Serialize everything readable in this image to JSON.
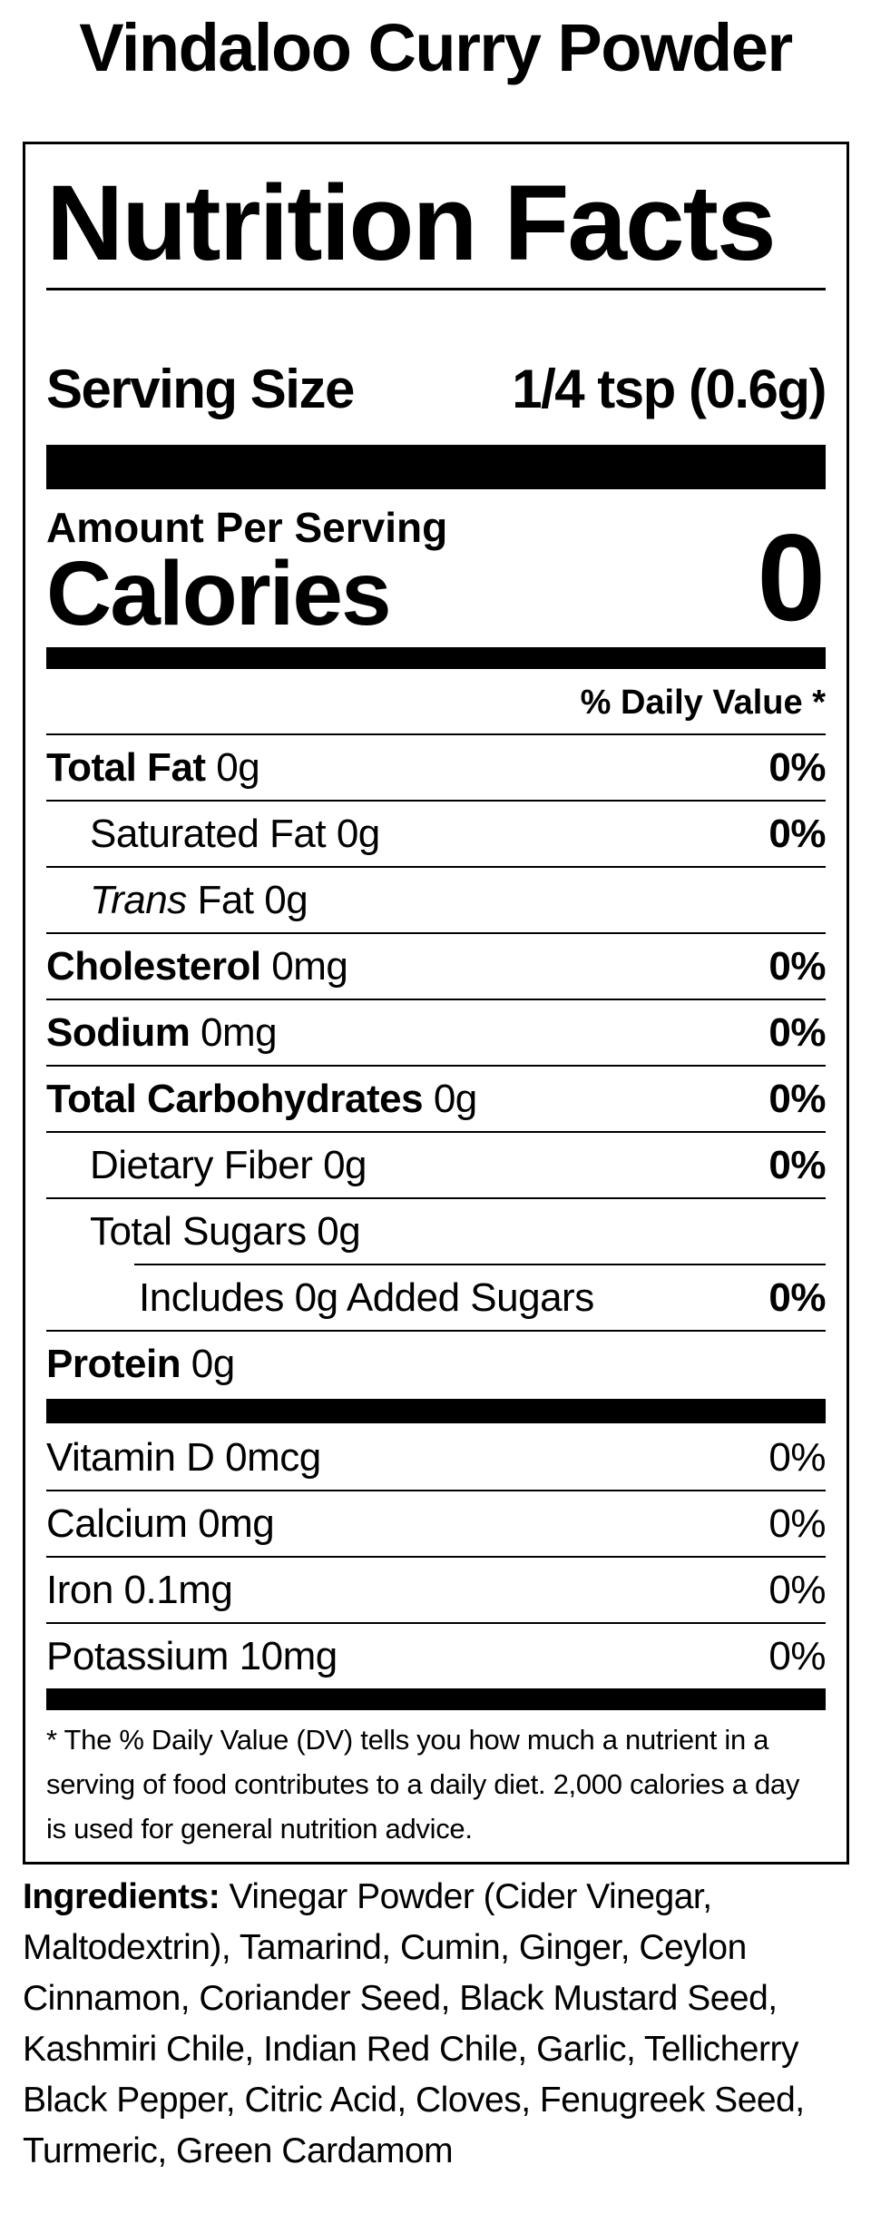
{
  "page": {
    "title": "Vindaloo Curry Powder"
  },
  "label": {
    "heading": "Nutrition Facts",
    "serving": {
      "label": "Serving Size",
      "value": "1/4 tsp (0.6g)"
    },
    "amount_per_serving": "Amount Per Serving",
    "calories": {
      "label": "Calories",
      "value": "0"
    },
    "daily_value_header": "% Daily Value *",
    "rows": [
      {
        "b": "Total Fat",
        "i": "",
        "r": " 0g",
        "dv": "0%"
      },
      {
        "b": "",
        "i": "",
        "r": "Saturated Fat 0g",
        "dv": "0%"
      },
      {
        "b": "",
        "i": "Trans",
        "r": " Fat 0g",
        "dv": ""
      },
      {
        "b": "Cholesterol",
        "i": "",
        "r": " 0mg",
        "dv": "0%"
      },
      {
        "b": "Sodium",
        "i": "",
        "r": " 0mg",
        "dv": "0%"
      },
      {
        "b": "Total Carbohydrates",
        "i": "",
        "r": " 0g",
        "dv": "0%"
      },
      {
        "b": "",
        "i": "",
        "r": "Dietary Fiber 0g",
        "dv": "0%"
      },
      {
        "b": "",
        "i": "",
        "r": "Total Sugars 0g",
        "dv": ""
      },
      {
        "b": "",
        "i": "",
        "r": "Includes 0g Added Sugars",
        "dv": "0%"
      },
      {
        "b": "Protein",
        "i": "",
        "r": " 0g",
        "dv": ""
      }
    ],
    "vitamin_rows": [
      {
        "text": "Vitamin D 0mcg",
        "dv": "0%"
      },
      {
        "text": "Calcium 0mg",
        "dv": "0%"
      },
      {
        "text": "Iron 0.1mg",
        "dv": "0%"
      },
      {
        "text": "Potassium 10mg",
        "dv": "0%"
      }
    ],
    "footnote": "* The % Daily Value (DV) tells you how much a nutrient in a serving of food contributes to a daily diet. 2,000 calories a day is used for general nutrition advice."
  },
  "ingredients": {
    "label": "Ingredients:",
    "text": " Vinegar Powder (Cider Vinegar, Maltodextrin), Tamarind, Cumin, Ginger, Ceylon Cinnamon, Coriander Seed, Black Mustard Seed, Kashmiri Chile, Indian Red Chile, Garlic, Tellicherry Black Pepper, Citric Acid, Cloves, Fenugreek Seed, Turmeric, Green Cardamom"
  },
  "colors": {
    "ink": "#000000",
    "background": "#ffffff"
  }
}
